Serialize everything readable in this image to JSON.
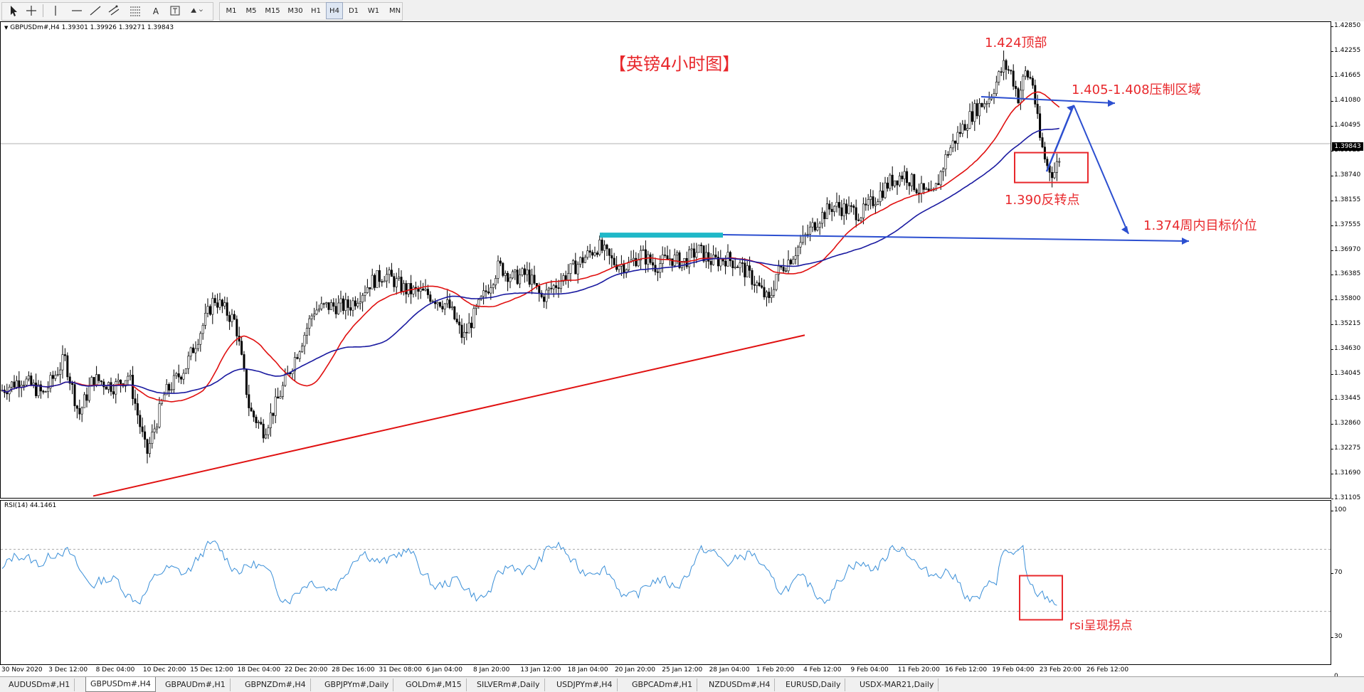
{
  "toolbar": {
    "timeframes": [
      "M1",
      "M5",
      "M15",
      "M30",
      "H1",
      "H4",
      "D1",
      "W1",
      "MN"
    ],
    "active_timeframe": "H4",
    "tools": [
      "cursor-icon",
      "crosshair-icon",
      "vertical-line-icon",
      "horizontal-line-icon",
      "trendline-icon",
      "channel-icon",
      "fibonacci-icon",
      "text-icon",
      "text-label-icon",
      "shapes-icon"
    ],
    "text_tool_label": "A"
  },
  "chart": {
    "symbol_info": "GBPUSDm#,H4  1.39301 1.39926 1.39271 1.39843",
    "current_price": "1.39843",
    "title_annotation": "【英镑4小时图】",
    "annotations": {
      "top": "1.424顶部",
      "resistance": "1.405-1.408压制区域",
      "reversal": "1.390反转点",
      "target": "1.374周内目标价位",
      "rsi_note": "rsi呈现拐点"
    },
    "price_ticks": [
      "1.42850",
      "1.42255",
      "1.41665",
      "1.41080",
      "1.40495",
      "1.39925",
      "1.38740",
      "1.38155",
      "1.37555",
      "1.36970",
      "1.36385",
      "1.35800",
      "1.35215",
      "1.34630",
      "1.34045",
      "1.33445",
      "1.32860",
      "1.32275",
      "1.31690",
      "1.31105"
    ],
    "time_ticks": [
      "30 Nov 2020",
      "3 Dec 12:00",
      "8 Dec 04:00",
      "10 Dec 20:00",
      "15 Dec 12:00",
      "18 Dec 04:00",
      "22 Dec 20:00",
      "28 Dec 16:00",
      "31 Dec 08:00",
      "6 Jan 04:00",
      "8 Jan 20:00",
      "13 Jan 12:00",
      "18 Jan 04:00",
      "20 Jan 20:00",
      "25 Jan 12:00",
      "28 Jan 04:00",
      "1 Feb 20:00",
      "4 Feb 12:00",
      "9 Feb 04:00",
      "11 Feb 20:00",
      "16 Feb 12:00",
      "19 Feb 04:00",
      "23 Feb 20:00",
      "26 Feb 12:00"
    ],
    "colors": {
      "ma_fast": "#e01010",
      "ma_slow": "#1a1aa0",
      "trendline": "#e01010",
      "arrows": "#2c4fd0",
      "rsi_line": "#3a8fd8",
      "resistance_band": "#20b8c8",
      "annotation": "#e8282c"
    }
  },
  "rsi": {
    "label": "RSI(14) 44.1461",
    "levels": [
      "100",
      "70",
      "30",
      "0"
    ]
  },
  "tabs": [
    "AUDUSDm#,H1",
    "GBPUSDm#,H4",
    "GBPAUDm#,H1",
    "GBPNZDm#,H4",
    "GBPJPYm#,Daily",
    "GOLDm#,M15",
    "SILVERm#,Daily",
    "USDJPYm#,H4",
    "GBPCADm#,H1",
    "NZDUSDm#,H4",
    "EURUSD,Daily",
    "USDX-MAR21,Daily"
  ],
  "active_tab": "GBPUSDm#,H4"
}
